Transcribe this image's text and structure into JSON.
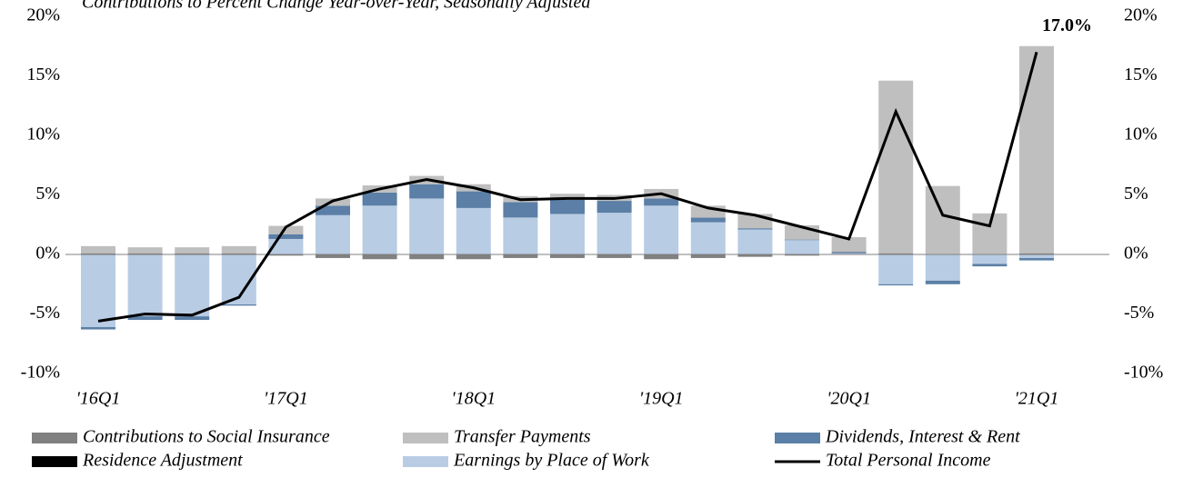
{
  "chart_data": {
    "type": "bar",
    "title": "Contributions to Percent Change Year-over-Year, Seasonally Adjusted",
    "categories": [
      "'16Q1",
      null,
      null,
      null,
      "'17Q1",
      null,
      null,
      null,
      "'18Q1",
      null,
      null,
      null,
      "'19Q1",
      null,
      null,
      null,
      "'20Q1",
      null,
      null,
      null,
      "'21Q1"
    ],
    "series": [
      {
        "name": "Contributions to Social Insurance",
        "color": "#808080",
        "values": [
          0.1,
          0.1,
          0.1,
          0.1,
          -0.1,
          -0.3,
          -0.4,
          -0.4,
          -0.4,
          -0.3,
          -0.3,
          -0.3,
          -0.4,
          -0.3,
          -0.2,
          -0.1,
          0.05,
          0.1,
          0.05,
          0.05,
          0.1
        ]
      },
      {
        "name": "Transfer Payments",
        "color": "#bfbfbf",
        "values": [
          0.6,
          0.5,
          0.5,
          0.6,
          0.7,
          0.6,
          0.6,
          0.7,
          0.6,
          0.5,
          0.5,
          0.5,
          0.8,
          1.0,
          1.2,
          1.2,
          1.2,
          14.5,
          5.7,
          3.4,
          17.4
        ]
      },
      {
        "name": "Dividends, Interest & Rent",
        "color": "#5b7fa6",
        "values": [
          -0.2,
          -0.3,
          -0.3,
          -0.1,
          0.4,
          0.8,
          1.1,
          1.2,
          1.4,
          1.3,
          1.2,
          1.0,
          0.6,
          0.4,
          0.1,
          0.05,
          0.1,
          -0.1,
          -0.3,
          -0.2,
          -0.2
        ]
      },
      {
        "name": "Residence Adjustment",
        "color": "#000000",
        "values": [
          0,
          0,
          0,
          0,
          0,
          0,
          0,
          0,
          0,
          0,
          0,
          0,
          0,
          0,
          0,
          0,
          0,
          0,
          0,
          0,
          0
        ]
      },
      {
        "name": "Earnings by Place of Work",
        "color": "#b8cce4",
        "values": [
          -6.1,
          -5.2,
          -5.2,
          -4.2,
          1.3,
          3.3,
          4.1,
          4.7,
          3.9,
          3.1,
          3.4,
          3.5,
          4.1,
          2.7,
          2.1,
          1.2,
          0.1,
          -2.5,
          -2.2,
          -0.8,
          -0.3
        ]
      },
      {
        "name": "Total Personal Income",
        "color": "#000000",
        "type": "line",
        "values": [
          -5.6,
          -5.0,
          -5.1,
          -3.6,
          2.3,
          4.5,
          5.5,
          6.3,
          5.6,
          4.6,
          4.7,
          4.7,
          5.1,
          3.9,
          3.3,
          2.3,
          1.3,
          12.0,
          3.3,
          2.4,
          17.0
        ],
        "value_labels": [
          null,
          null,
          null,
          null,
          null,
          null,
          null,
          null,
          null,
          null,
          null,
          null,
          null,
          null,
          null,
          null,
          null,
          null,
          null,
          null,
          "17.0%"
        ]
      }
    ],
    "ylim": [
      -10,
      20
    ],
    "yticks": [
      {
        "value": -10,
        "label": "-10%"
      },
      {
        "value": -5,
        "label": "-5%"
      },
      {
        "value": 0,
        "label": "0%"
      },
      {
        "value": 5,
        "label": "5%"
      },
      {
        "value": 10,
        "label": "10%"
      },
      {
        "value": 15,
        "label": "15%"
      },
      {
        "value": 20,
        "label": "20%"
      }
    ],
    "y2lim": [
      -10,
      20
    ],
    "y2ticks": [
      {
        "value": -10,
        "label": "-10%"
      },
      {
        "value": -5,
        "label": "-5%"
      },
      {
        "value": 0,
        "label": "0%"
      },
      {
        "value": 5,
        "label": "5%"
      },
      {
        "value": 10,
        "label": "10%"
      },
      {
        "value": 15,
        "label": "15%"
      },
      {
        "value": 20,
        "label": "20%"
      }
    ],
    "legend": "bottom"
  }
}
